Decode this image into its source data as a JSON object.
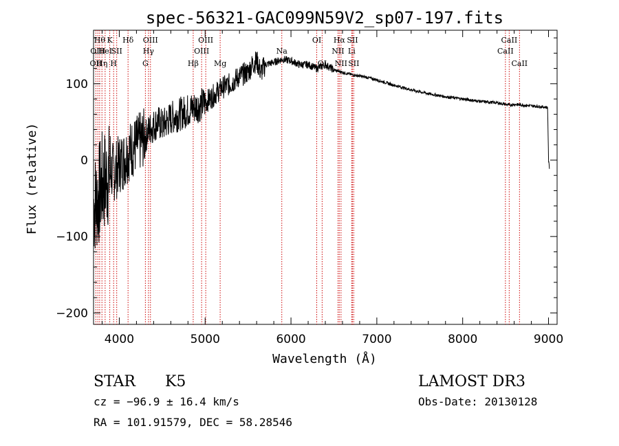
{
  "chart_data": {
    "type": "line",
    "title": "spec-56321-GAC099N59V2_sp07-197.fits",
    "xlabel": "Wavelength (Å)",
    "ylabel": "Flux (relative)",
    "xlim": [
      3700,
      9100
    ],
    "ylim": [
      -215,
      170
    ],
    "x_ticks": [
      4000,
      5000,
      6000,
      7000,
      8000,
      9000
    ],
    "y_ticks": [
      -200,
      -100,
      0,
      100
    ],
    "series": [
      {
        "name": "flux",
        "x": [
          3700,
          3750,
          3800,
          3850,
          3900,
          3950,
          4000,
          4050,
          4100,
          4150,
          4200,
          4250,
          4300,
          4350,
          4400,
          4450,
          4500,
          4600,
          4700,
          4800,
          4900,
          5000,
          5100,
          5200,
          5300,
          5400,
          5500,
          5550,
          5600,
          5650,
          5700,
          5800,
          5900,
          6000,
          6100,
          6200,
          6300,
          6400,
          6500,
          6600,
          6700,
          6800,
          6900,
          7000,
          7200,
          7400,
          7600,
          7800,
          8000,
          8200,
          8400,
          8500,
          8550,
          8600,
          8700,
          8800,
          8900,
          8990,
          9000,
          9010
        ],
        "y": [
          -60,
          -50,
          -30,
          -25,
          -15,
          -15,
          -5,
          0,
          10,
          15,
          20,
          25,
          30,
          40,
          45,
          50,
          45,
          55,
          60,
          65,
          70,
          75,
          85,
          95,
          100,
          110,
          115,
          125,
          130,
          115,
          125,
          128,
          132,
          130,
          125,
          125,
          120,
          125,
          118,
          115,
          112,
          110,
          108,
          105,
          98,
          92,
          87,
          83,
          80,
          77,
          75,
          73,
          72,
          73,
          72,
          71,
          70,
          69,
          0,
          -10
        ]
      }
    ],
    "line_labels": [
      {
        "wavelength": 3727,
        "row": 3,
        "text": "OII"
      },
      {
        "wavelength": 3750,
        "row": 2,
        "text": "OIII"
      },
      {
        "wavelength": 3771,
        "row": 1,
        "text": "Hθ"
      },
      {
        "wavelength": 3798,
        "row": 3,
        "text": "Hη"
      },
      {
        "wavelength": 3835,
        "row": 2,
        "text": "HeI"
      },
      {
        "wavelength": 3889,
        "row": 1,
        "text": "K"
      },
      {
        "wavelength": 3934,
        "row": 3,
        "text": "H"
      },
      {
        "wavelength": 3970,
        "row": 2,
        "text": "SII"
      },
      {
        "wavelength": 4102,
        "row": 1,
        "text": "Hδ"
      },
      {
        "wavelength": 4304,
        "row": 3,
        "text": "G"
      },
      {
        "wavelength": 4340,
        "row": 2,
        "text": "Hγ"
      },
      {
        "wavelength": 4363,
        "row": 1,
        "text": "OIII"
      },
      {
        "wavelength": 4861,
        "row": 3,
        "text": "Hβ"
      },
      {
        "wavelength": 4959,
        "row": 2,
        "text": "OIII"
      },
      {
        "wavelength": 5007,
        "row": 1,
        "text": "OIII"
      },
      {
        "wavelength": 5175,
        "row": 3,
        "text": "Mg"
      },
      {
        "wavelength": 5893,
        "row": 2,
        "text": "Na"
      },
      {
        "wavelength": 6300,
        "row": 1,
        "text": "OI"
      },
      {
        "wavelength": 6363,
        "row": 3,
        "text": "OI"
      },
      {
        "wavelength": 6548,
        "row": 2,
        "text": "NII"
      },
      {
        "wavelength": 6563,
        "row": 1,
        "text": "Hα"
      },
      {
        "wavelength": 6583,
        "row": 3,
        "text": "NII"
      },
      {
        "wavelength": 6707,
        "row": 2,
        "text": "Li"
      },
      {
        "wavelength": 6716,
        "row": 1,
        "text": "SII"
      },
      {
        "wavelength": 6731,
        "row": 3,
        "text": "SII"
      },
      {
        "wavelength": 8498,
        "row": 2,
        "text": "CaII"
      },
      {
        "wavelength": 8542,
        "row": 1,
        "text": "CaII"
      },
      {
        "wavelength": 8662,
        "row": 3,
        "text": "CaII"
      }
    ],
    "line_color": "#000000",
    "marker_color": "#cc0000"
  },
  "info": {
    "class": "STAR",
    "subclass": "K5",
    "cz": "cz = −96.9 ± 16.4 km/s",
    "radec": "RA = 101.91579, DEC =  58.28546",
    "survey": "LAMOST DR3",
    "obsdate": "Obs-Date: 20130128"
  }
}
